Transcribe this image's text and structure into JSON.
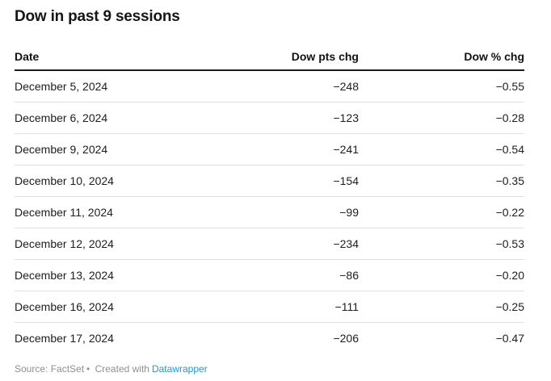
{
  "title": "Dow in past 9 sessions",
  "table": {
    "columns": [
      "Date",
      "Dow pts chg",
      "Dow % chg"
    ],
    "rows": [
      [
        "December 5, 2024",
        "−248",
        "−0.55"
      ],
      [
        "December 6, 2024",
        "−123",
        "−0.28"
      ],
      [
        "December 9, 2024",
        "−241",
        "−0.54"
      ],
      [
        "December 10, 2024",
        "−154",
        "−0.35"
      ],
      [
        "December 11, 2024",
        "−99",
        "−0.22"
      ],
      [
        "December 12, 2024",
        "−234",
        "−0.53"
      ],
      [
        "December 13, 2024",
        "−86",
        "−0.20"
      ],
      [
        "December 16, 2024",
        "−111",
        "−0.25"
      ],
      [
        "December 17, 2024",
        "−206",
        "−0.47"
      ]
    ]
  },
  "footer": {
    "source": "Source: FactSet",
    "separator": "•",
    "created": "Created with",
    "link_label": "Datawrapper"
  },
  "colors": {
    "link_blue": "#1e96d7",
    "header_rule": "#1c1c1c",
    "row_divider": "#e0e0e0"
  },
  "chart_data": {
    "type": "table",
    "title": "Dow in past 9 sessions",
    "columns": [
      "Date",
      "Dow pts chg",
      "Dow % chg"
    ],
    "rows": [
      [
        "December 5, 2024",
        -248,
        -0.55
      ],
      [
        "December 6, 2024",
        -123,
        -0.28
      ],
      [
        "December 9, 2024",
        -241,
        -0.54
      ],
      [
        "December 10, 2024",
        -154,
        -0.35
      ],
      [
        "December 11, 2024",
        -99,
        -0.22
      ],
      [
        "December 12, 2024",
        -234,
        -0.53
      ],
      [
        "December 13, 2024",
        -86,
        -0.2
      ],
      [
        "December 16, 2024",
        -111,
        -0.25
      ],
      [
        "December 17, 2024",
        -206,
        -0.47
      ]
    ],
    "source": "FactSet"
  }
}
